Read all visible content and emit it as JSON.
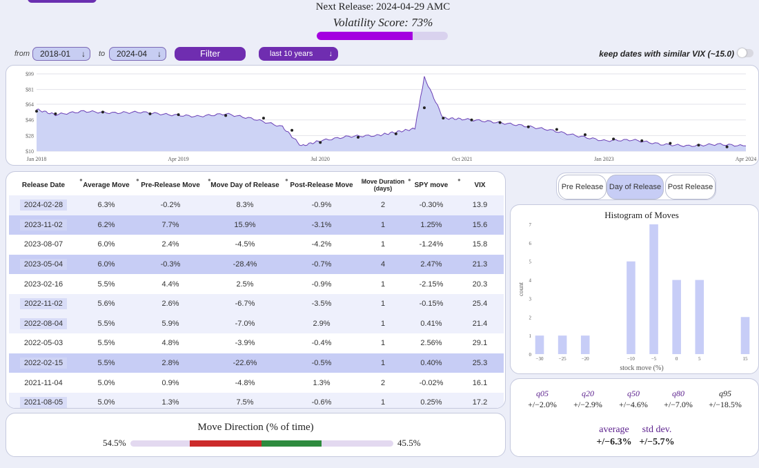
{
  "header": {
    "next_release": "Next Release: 2024-04-29 AMC",
    "volatility_score": "Volatility Score: 73%",
    "volatility_fraction": 0.73
  },
  "controls": {
    "from_label": "from",
    "from_value": "2018-01",
    "to_label": "to",
    "to_value": "2024-04",
    "filter_label": "Filter",
    "range_value": "last 10 years",
    "vix_toggle_label": "keep dates with similar VIX (~15.0)"
  },
  "price_chart": {
    "y_ticks": [
      "$99",
      "$81",
      "$64",
      "$46",
      "$28",
      "$10"
    ],
    "x_ticks": [
      "Jan 2018",
      "Apr 2019",
      "Jul 2020",
      "Oct 2021",
      "Jan 2023",
      "Apr 2024"
    ]
  },
  "table": {
    "headers": [
      "Release Date",
      "Average Move",
      "Pre-Release Move",
      "Move Day of Release",
      "Post-Release Move",
      "Move Duration (days)",
      "SPY move",
      "VIX"
    ],
    "rows": [
      {
        "date": "2024-02-28",
        "avg": "6.3%",
        "pre": "-0.2%",
        "day": "8.3%",
        "post": "-0.9%",
        "dur": "2",
        "spy": "-0.30%",
        "vix": "13.9",
        "style": "row-odd"
      },
      {
        "date": "2023-11-02",
        "avg": "6.2%",
        "pre": "7.7%",
        "day": "15.9%",
        "post": "-3.1%",
        "dur": "1",
        "spy": "1.25%",
        "vix": "15.6",
        "style": "row-hl"
      },
      {
        "date": "2023-08-07",
        "avg": "6.0%",
        "pre": "2.4%",
        "day": "-4.5%",
        "post": "-4.2%",
        "dur": "1",
        "spy": "-1.24%",
        "vix": "15.8",
        "style": "row-even"
      },
      {
        "date": "2023-05-04",
        "avg": "6.0%",
        "pre": "-0.3%",
        "day": "-28.4%",
        "post": "-0.7%",
        "dur": "4",
        "spy": "2.47%",
        "vix": "21.3",
        "style": "row-hl"
      },
      {
        "date": "2023-02-16",
        "avg": "5.5%",
        "pre": "4.4%",
        "day": "2.5%",
        "post": "-0.9%",
        "dur": "1",
        "spy": "-2.15%",
        "vix": "20.3",
        "style": "row-even"
      },
      {
        "date": "2022-11-02",
        "avg": "5.6%",
        "pre": "2.6%",
        "day": "-6.7%",
        "post": "-3.5%",
        "dur": "1",
        "spy": "-0.15%",
        "vix": "25.4",
        "style": "row-odd"
      },
      {
        "date": "2022-08-04",
        "avg": "5.5%",
        "pre": "5.9%",
        "day": "-7.0%",
        "post": "2.9%",
        "dur": "1",
        "spy": "0.41%",
        "vix": "21.4",
        "style": "row-odd"
      },
      {
        "date": "2022-05-03",
        "avg": "5.5%",
        "pre": "4.8%",
        "day": "-3.9%",
        "post": "-0.4%",
        "dur": "1",
        "spy": "2.56%",
        "vix": "29.1",
        "style": "row-even"
      },
      {
        "date": "2022-02-15",
        "avg": "5.5%",
        "pre": "2.8%",
        "day": "-22.6%",
        "post": "-0.5%",
        "dur": "1",
        "spy": "0.40%",
        "vix": "25.3",
        "style": "row-hl"
      },
      {
        "date": "2021-11-04",
        "avg": "5.0%",
        "pre": "0.9%",
        "day": "-4.8%",
        "post": "1.3%",
        "dur": "2",
        "spy": "-0.02%",
        "vix": "16.1",
        "style": "row-even"
      },
      {
        "date": "2021-08-05",
        "avg": "5.0%",
        "pre": "1.3%",
        "day": "7.5%",
        "post": "-0.6%",
        "dur": "1",
        "spy": "0.25%",
        "vix": "17.2",
        "style": "row-odd"
      }
    ]
  },
  "tabs": {
    "pre": "Pre Release",
    "day": "Day of Release",
    "post": "Post Release",
    "active": "day"
  },
  "histogram": {
    "title": "Histogram of Moves",
    "xlabel": "stock move (%)",
    "ylabel": "count"
  },
  "direction": {
    "title": "Move Direction (% of time)",
    "down_pct": "54.5%",
    "up_pct": "45.5%",
    "down_fraction": 0.545,
    "up_fraction": 0.455
  },
  "stats": {
    "quantiles": [
      {
        "label": "q05",
        "value": "+/−2.0%"
      },
      {
        "label": "q20",
        "value": "+/−2.9%"
      },
      {
        "label": "q50",
        "value": "+/−4.6%"
      },
      {
        "label": "q80",
        "value": "+/−7.0%"
      },
      {
        "label": "q95",
        "value": "+/−18.5%"
      }
    ],
    "average_label": "average",
    "average_value": "+/−6.3%",
    "std_label": "std dev.",
    "std_value": "+/−5.7%"
  },
  "chart_data": [
    {
      "type": "area",
      "title": "",
      "xlabel": "",
      "ylabel": "",
      "x_tick_labels": [
        "Jan 2018",
        "Apr 2019",
        "Jul 2020",
        "Oct 2021",
        "Jan 2023",
        "Apr 2024"
      ],
      "y_tick_labels": [
        "$99",
        "$81",
        "$64",
        "$46",
        "$28",
        "$10"
      ],
      "ylim": [
        10,
        99
      ],
      "x": [
        "2018-01",
        "2018-03",
        "2018-06",
        "2018-09",
        "2018-12",
        "2019-03",
        "2019-06",
        "2019-09",
        "2019-12",
        "2020-03",
        "2020-05",
        "2020-07",
        "2020-10",
        "2021-01",
        "2021-03",
        "2021-05",
        "2021-06",
        "2021-08",
        "2021-10",
        "2022-01",
        "2022-04",
        "2022-07",
        "2022-10",
        "2023-01",
        "2023-04",
        "2023-07",
        "2023-10",
        "2024-01",
        "2024-04"
      ],
      "series": [
        {
          "values": [
            58,
            52,
            56,
            54,
            55,
            52,
            50,
            53,
            47,
            38,
            16,
            22,
            27,
            28,
            32,
            36,
            95,
            48,
            47,
            44,
            40,
            35,
            28,
            22,
            23,
            18,
            16,
            18,
            16
          ]
        }
      ],
      "markers": {
        "x": [
          "2018-01",
          "2018-03",
          "2018-08",
          "2019-01",
          "2019-04",
          "2019-09",
          "2020-01",
          "2020-04",
          "2020-07",
          "2020-11",
          "2021-03",
          "2021-06",
          "2021-08",
          "2021-11",
          "2022-02",
          "2022-05",
          "2022-08",
          "2022-11",
          "2023-02",
          "2023-05",
          "2023-08",
          "2023-11",
          "2024-02"
        ],
        "y": [
          56,
          53,
          55,
          53,
          52,
          51,
          48,
          34,
          20,
          26,
          30,
          60,
          48,
          46,
          43,
          38,
          35,
          29,
          24,
          22,
          19,
          17,
          15
        ]
      },
      "grid": true
    },
    {
      "type": "bar",
      "title": "Histogram of Moves",
      "xlabel": "stock move (%)",
      "ylabel": "count",
      "categories": [
        -30,
        -25,
        -20,
        -10,
        -5,
        0,
        5,
        15
      ],
      "values": [
        1,
        1,
        1,
        5,
        7,
        4,
        4,
        2
      ],
      "x_tick_labels": [
        "−30",
        "−25",
        "−20",
        "−10",
        "−5",
        "0",
        "5",
        "15"
      ],
      "y_tick_labels": [
        "0",
        "1",
        "2",
        "3",
        "4",
        "5",
        "6",
        "7"
      ],
      "xlim": [
        -30,
        15
      ],
      "ylim": [
        0,
        7
      ]
    }
  ]
}
